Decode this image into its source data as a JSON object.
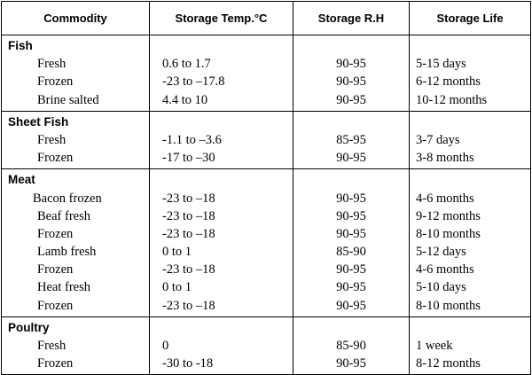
{
  "headers": {
    "commodity": "Commodity",
    "temp": "Storage Temp.°C",
    "rh": "Storage R.H",
    "life": "Storage Life"
  },
  "groups": [
    {
      "category": "Fish",
      "items": [
        {
          "name": "Fresh",
          "temp": "0.6 to 1.7",
          "rh": "90-95",
          "life": "5-15 days"
        },
        {
          "name": "Frozen",
          "temp": "-23 to –17.8",
          "rh": "90-95",
          "life": "6-12 months"
        },
        {
          "name": "Brine salted",
          "temp": "4.4 to 10",
          "rh": "90-95",
          "life": "10-12 months"
        }
      ]
    },
    {
      "category": "Sheet Fish",
      "items": [
        {
          "name": "Fresh",
          "temp": "-1.1 to –3.6",
          "rh": "85-95",
          "life": "3-7 days"
        },
        {
          "name": "Frozen",
          "temp": "-17 to –30",
          "rh": "90-95",
          "life": "3-8 months"
        }
      ]
    },
    {
      "category": "Meat",
      "items": [
        {
          "name": "Bacon frozen",
          "temp": "-23 to –18",
          "rh": "90-95",
          "life": "4-6 months"
        },
        {
          "name": "Beaf fresh",
          "temp": "-23 to –18",
          "rh": "90-95",
          "life": "9-12 months"
        },
        {
          "name": "Frozen",
          "temp": "-23 to –18",
          "rh": "90-95",
          "life": "8-10 months"
        },
        {
          "name": "Lamb fresh",
          "temp": "0 to 1",
          "rh": "85-90",
          "life": "5-12 days"
        },
        {
          "name": "Frozen",
          "temp": "-23 to –18",
          "rh": "90-95",
          "life": "4-6 months"
        },
        {
          "name": "Heat fresh",
          "temp": "0 to 1",
          "rh": "90-95",
          "life": "5-10 days"
        },
        {
          "name": "Frozen",
          "temp": "-23 to –18",
          "rh": "90-95",
          "life": "8-10 months"
        }
      ]
    },
    {
      "category": "Poultry",
      "items": [
        {
          "name": "Fresh",
          "temp": "0",
          "rh": "85-90",
          "life": "1 week"
        },
        {
          "name": "Frozen",
          "temp": "-30 to -18",
          "rh": "90-95",
          "life": "8-12 months"
        }
      ]
    }
  ]
}
